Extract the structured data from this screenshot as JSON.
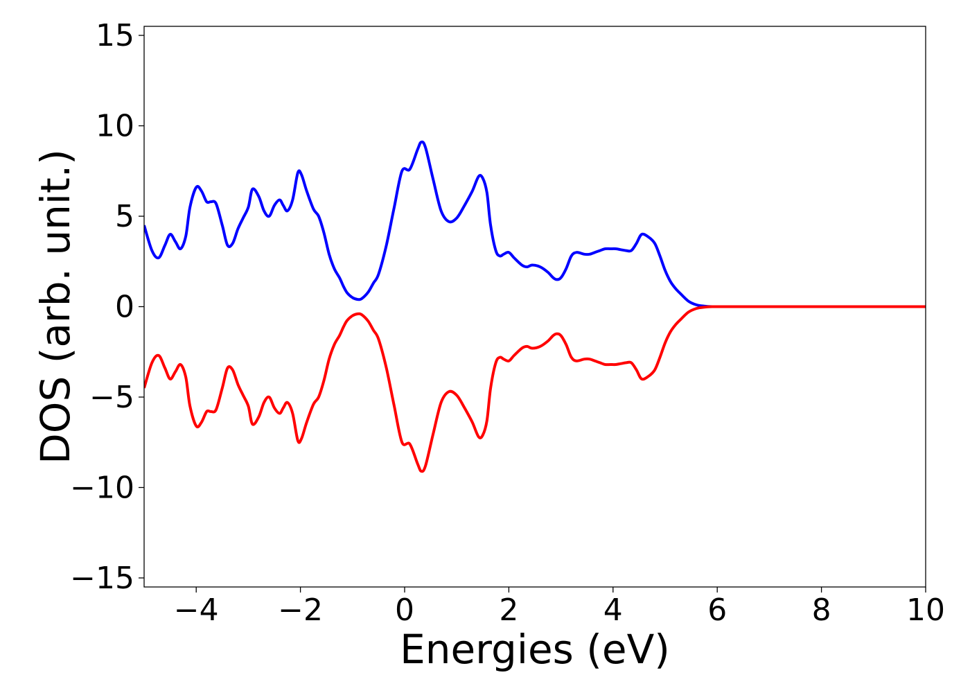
{
  "chart_data": {
    "type": "line",
    "title": "",
    "xlabel": "Energies (eV)",
    "ylabel": "DOS (arb. unit.)",
    "xlim": [
      -5,
      10
    ],
    "ylim": [
      -15.5,
      15.5
    ],
    "xticks": [
      -4,
      -2,
      0,
      2,
      4,
      6,
      8,
      10
    ],
    "xtick_labels": [
      "−4",
      "−2",
      "0",
      "2",
      "4",
      "6",
      "8",
      "10"
    ],
    "yticks": [
      15,
      10,
      5,
      0,
      -5,
      -10,
      -15
    ],
    "ytick_labels": [
      "15",
      "10",
      "5",
      "0",
      "−5",
      "−10",
      "−15"
    ],
    "grid": false,
    "legend": false,
    "series": [
      {
        "color": "#0000ff",
        "x": [
          -5.0,
          -4.85,
          -4.72,
          -4.6,
          -4.5,
          -4.4,
          -4.3,
          -4.2,
          -4.12,
          -4.0,
          -3.9,
          -3.8,
          -3.72,
          -3.62,
          -3.5,
          -3.4,
          -3.3,
          -3.2,
          -3.1,
          -3.0,
          -2.92,
          -2.8,
          -2.7,
          -2.6,
          -2.5,
          -2.4,
          -2.33,
          -2.25,
          -2.15,
          -2.05,
          -1.98,
          -1.88,
          -1.75,
          -1.65,
          -1.55,
          -1.45,
          -1.35,
          -1.25,
          -1.17,
          -1.1,
          -1.0,
          -0.9,
          -0.82,
          -0.7,
          -0.6,
          -0.5,
          -0.35,
          -0.2,
          -0.05,
          0.1,
          0.25,
          0.32,
          0.4,
          0.55,
          0.7,
          0.85,
          1.0,
          1.15,
          1.3,
          1.42,
          1.5,
          1.58,
          1.65,
          1.75,
          1.83,
          1.9,
          2.0,
          2.1,
          2.25,
          2.35,
          2.45,
          2.6,
          2.75,
          2.85,
          2.92,
          3.0,
          3.1,
          3.2,
          3.3,
          3.45,
          3.55,
          3.65,
          3.75,
          3.85,
          3.95,
          4.05,
          4.15,
          4.25,
          4.35,
          4.45,
          4.55,
          4.68,
          4.8,
          4.9,
          5.0,
          5.1,
          5.2,
          5.3,
          5.45,
          5.6,
          5.75,
          5.9,
          6.05,
          6.2,
          6.35,
          6.5,
          6.6,
          6.7,
          6.8,
          6.9,
          7.0,
          7.1,
          7.2,
          7.35,
          7.5,
          7.65,
          7.8,
          7.95,
          8.1,
          8.25,
          8.5,
          9.0,
          9.5,
          10.0
        ],
        "y": [
          4.5,
          3.1,
          2.7,
          3.4,
          4.0,
          3.6,
          3.2,
          3.9,
          5.5,
          6.6,
          6.4,
          5.8,
          5.8,
          5.7,
          4.5,
          3.4,
          3.5,
          4.3,
          4.9,
          5.5,
          6.5,
          6.1,
          5.3,
          5.0,
          5.6,
          5.9,
          5.6,
          5.3,
          5.9,
          7.4,
          7.3,
          6.4,
          5.4,
          5.0,
          4.1,
          2.9,
          2.1,
          1.6,
          1.1,
          0.75,
          0.5,
          0.4,
          0.45,
          0.8,
          1.3,
          1.8,
          3.4,
          5.5,
          7.5,
          7.6,
          8.7,
          9.1,
          8.8,
          7.0,
          5.3,
          4.7,
          4.9,
          5.6,
          6.4,
          7.2,
          7.1,
          6.3,
          4.5,
          3.1,
          2.8,
          2.9,
          3.0,
          2.7,
          2.3,
          2.2,
          2.3,
          2.2,
          1.9,
          1.6,
          1.5,
          1.6,
          2.1,
          2.8,
          3.0,
          2.9,
          2.9,
          3.0,
          3.1,
          3.2,
          3.2,
          3.2,
          3.15,
          3.1,
          3.1,
          3.5,
          4.0,
          3.85,
          3.5,
          2.8,
          2.0,
          1.4,
          1.0,
          0.7,
          0.3,
          0.1,
          0.03,
          0.0,
          0.0,
          0.0,
          0.0,
          0.0,
          0.0,
          0.0,
          0.0,
          0.0,
          0.0,
          0.0,
          0.0,
          0.0,
          0.0,
          0.0,
          0.0,
          0.0,
          0.0,
          0.0,
          0.0,
          0.0,
          0.0,
          0.0
        ]
      },
      {
        "color": "#ff0000",
        "x": [
          -5.0,
          -4.85,
          -4.72,
          -4.6,
          -4.5,
          -4.4,
          -4.3,
          -4.2,
          -4.12,
          -4.0,
          -3.9,
          -3.8,
          -3.72,
          -3.62,
          -3.5,
          -3.4,
          -3.3,
          -3.2,
          -3.1,
          -3.0,
          -2.92,
          -2.8,
          -2.7,
          -2.6,
          -2.5,
          -2.4,
          -2.33,
          -2.25,
          -2.15,
          -2.05,
          -1.98,
          -1.88,
          -1.75,
          -1.65,
          -1.55,
          -1.45,
          -1.35,
          -1.25,
          -1.17,
          -1.1,
          -1.0,
          -0.9,
          -0.82,
          -0.7,
          -0.6,
          -0.5,
          -0.35,
          -0.2,
          -0.05,
          0.1,
          0.25,
          0.32,
          0.4,
          0.55,
          0.7,
          0.85,
          1.0,
          1.15,
          1.3,
          1.42,
          1.5,
          1.58,
          1.65,
          1.75,
          1.83,
          1.9,
          2.0,
          2.1,
          2.25,
          2.35,
          2.45,
          2.6,
          2.75,
          2.85,
          2.92,
          3.0,
          3.1,
          3.2,
          3.3,
          3.45,
          3.55,
          3.65,
          3.75,
          3.85,
          3.95,
          4.05,
          4.15,
          4.25,
          4.35,
          4.45,
          4.55,
          4.68,
          4.8,
          4.9,
          5.0,
          5.1,
          5.2,
          5.3,
          5.45,
          5.6,
          5.75,
          5.9,
          6.05,
          6.2,
          6.35,
          6.5,
          6.6,
          6.7,
          6.8,
          6.9,
          7.0,
          7.1,
          7.2,
          7.35,
          7.5,
          7.65,
          7.8,
          7.95,
          8.1,
          8.25,
          8.5,
          9.0,
          9.5,
          10.0
        ],
        "y": [
          -4.5,
          -3.1,
          -2.7,
          -3.4,
          -4.0,
          -3.6,
          -3.2,
          -3.9,
          -5.5,
          -6.6,
          -6.4,
          -5.8,
          -5.8,
          -5.7,
          -4.5,
          -3.4,
          -3.5,
          -4.3,
          -4.9,
          -5.5,
          -6.5,
          -6.1,
          -5.3,
          -5.0,
          -5.6,
          -5.9,
          -5.6,
          -5.3,
          -5.9,
          -7.4,
          -7.3,
          -6.4,
          -5.4,
          -5.0,
          -4.1,
          -2.9,
          -2.1,
          -1.6,
          -1.1,
          -0.75,
          -0.5,
          -0.4,
          -0.45,
          -0.8,
          -1.3,
          -1.8,
          -3.4,
          -5.5,
          -7.5,
          -7.6,
          -8.7,
          -9.1,
          -8.8,
          -7.0,
          -5.3,
          -4.7,
          -4.9,
          -5.6,
          -6.4,
          -7.2,
          -7.1,
          -6.3,
          -4.5,
          -3.1,
          -2.8,
          -2.9,
          -3.0,
          -2.7,
          -2.3,
          -2.2,
          -2.3,
          -2.2,
          -1.9,
          -1.6,
          -1.5,
          -1.6,
          -2.1,
          -2.8,
          -3.0,
          -2.9,
          -2.9,
          -3.0,
          -3.1,
          -3.2,
          -3.2,
          -3.2,
          -3.15,
          -3.1,
          -3.1,
          -3.5,
          -4.0,
          -3.85,
          -3.5,
          -2.8,
          -2.0,
          -1.4,
          -1.0,
          -0.7,
          -0.3,
          -0.1,
          -0.03,
          0.0,
          0.0,
          0.0,
          0.0,
          0.0,
          0.0,
          0.0,
          0.0,
          0.0,
          0.0,
          0.0,
          0.0,
          0.0,
          0.0,
          0.0,
          0.0,
          0.0,
          0.0,
          0.0,
          0.0,
          0.0,
          0.0,
          0.0
        ]
      }
    ]
  }
}
